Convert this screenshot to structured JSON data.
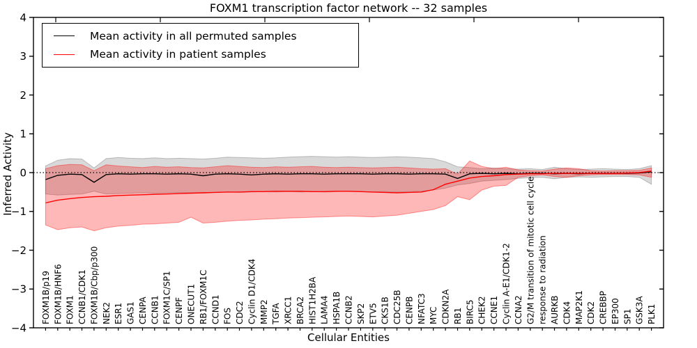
{
  "chart_data": {
    "type": "line",
    "title": "FOXM1 transcription factor network -- 32 samples",
    "xlabel": "Cellular Entities",
    "ylabel": "Inferred Activity",
    "ylim": [
      -4,
      4
    ],
    "yticks": [
      4,
      3,
      2,
      1,
      0,
      -1,
      -2,
      -3,
      -4
    ],
    "ytick_labels": [
      "4",
      "3",
      "2",
      "1",
      "0",
      "−1",
      "−2",
      "−3",
      "−4"
    ],
    "grid": false,
    "legend_position": "upper left",
    "zero_line": "dotted black at y=0",
    "categories": [
      "FOXM1B/p19",
      "FOXM1B/HNF6",
      "FOXM1",
      "CCNB1/CDK1",
      "FOXM1B/Cbp/p300",
      "NEK2",
      "ESR1",
      "GAS1",
      "CENPA",
      "CCNB1",
      "FOXM1C/SP1",
      "CENPF",
      "ONECUT1",
      "RB1/FOXM1C",
      "CCND1",
      "FOS",
      "CDC2",
      "Cyclin D1/CDK4",
      "MMP2",
      "TGFA",
      "XRCC1",
      "BRCA2",
      "HIST1H2BA",
      "LAMA4",
      "HSPA1B",
      "CCNB2",
      "SKP2",
      "ETV5",
      "CKS1B",
      "CDC25B",
      "CENPB",
      "NFATC3",
      "MYC",
      "CDKN2A",
      "RB1",
      "BIRC5",
      "CHEK2",
      "CCNE1",
      "Cyclin A-E1/CDK1-2",
      "CCNA2",
      "G2/M transition of mitotic cell cycle",
      "response to radiation",
      "AURKB",
      "CDK4",
      "MAP2K1",
      "CDK2",
      "CREBBP",
      "EP300",
      "SP1",
      "GSK3A",
      "PLK1"
    ],
    "series": [
      {
        "name": "Mean activity in all permuted samples",
        "color": "#000000",
        "values": [
          -0.18,
          -0.07,
          -0.04,
          -0.05,
          -0.25,
          -0.05,
          -0.03,
          -0.04,
          -0.03,
          -0.03,
          -0.04,
          -0.03,
          -0.04,
          -0.08,
          -0.04,
          -0.03,
          -0.04,
          -0.06,
          -0.04,
          -0.03,
          -0.04,
          -0.03,
          -0.03,
          -0.04,
          -0.03,
          -0.03,
          -0.03,
          -0.04,
          -0.03,
          -0.03,
          -0.04,
          -0.03,
          -0.03,
          -0.04,
          -0.15,
          -0.03,
          -0.02,
          -0.03,
          -0.02,
          -0.03,
          -0.02,
          -0.02,
          -0.03,
          -0.02,
          -0.03,
          -0.02,
          -0.02,
          -0.02,
          -0.02,
          -0.01,
          0.02
        ],
        "band": {
          "fill": "rgba(0,0,0,0.15)",
          "edge": "rgba(0,0,0,0.22)",
          "upper": [
            0.17,
            0.32,
            0.36,
            0.35,
            0.12,
            0.36,
            0.39,
            0.37,
            0.36,
            0.38,
            0.36,
            0.37,
            0.36,
            0.35,
            0.37,
            0.4,
            0.39,
            0.38,
            0.37,
            0.38,
            0.4,
            0.41,
            0.42,
            0.41,
            0.4,
            0.41,
            0.4,
            0.39,
            0.4,
            0.41,
            0.4,
            0.38,
            0.36,
            0.28,
            0.15,
            0.13,
            0.1,
            0.12,
            0.1,
            0.09,
            0.1,
            0.08,
            0.14,
            0.1,
            0.08,
            0.09,
            0.1,
            0.09,
            0.08,
            0.1,
            0.18
          ],
          "lower": [
            -0.55,
            -0.58,
            -0.56,
            -0.55,
            -0.48,
            -0.55,
            -0.54,
            -0.53,
            -0.52,
            -0.53,
            -0.52,
            -0.51,
            -0.52,
            -0.53,
            -0.51,
            -0.5,
            -0.51,
            -0.5,
            -0.49,
            -0.5,
            -0.49,
            -0.5,
            -0.49,
            -0.5,
            -0.49,
            -0.48,
            -0.49,
            -0.5,
            -0.49,
            -0.5,
            -0.49,
            -0.48,
            -0.45,
            -0.4,
            -0.32,
            -0.28,
            -0.22,
            -0.2,
            -0.18,
            -0.15,
            -0.13,
            -0.12,
            -0.16,
            -0.12,
            -0.11,
            -0.12,
            -0.11,
            -0.1,
            -0.1,
            -0.12,
            -0.3
          ]
        }
      },
      {
        "name": "Mean activity in patient samples",
        "color": "#ff0000",
        "values": [
          -0.78,
          -0.71,
          -0.67,
          -0.64,
          -0.62,
          -0.61,
          -0.59,
          -0.58,
          -0.57,
          -0.56,
          -0.55,
          -0.54,
          -0.53,
          -0.52,
          -0.51,
          -0.5,
          -0.5,
          -0.49,
          -0.49,
          -0.48,
          -0.48,
          -0.48,
          -0.49,
          -0.49,
          -0.48,
          -0.48,
          -0.49,
          -0.5,
          -0.51,
          -0.52,
          -0.51,
          -0.5,
          -0.44,
          -0.3,
          -0.22,
          -0.14,
          -0.1,
          -0.08,
          -0.05,
          -0.04,
          -0.03,
          -0.03,
          -0.02,
          -0.02,
          -0.02,
          -0.02,
          -0.02,
          -0.02,
          -0.01,
          0.0,
          0.04
        ],
        "band": {
          "fill": "rgba(255,0,0,0.28)",
          "edge": "rgba(255,0,0,0.40)",
          "upper": [
            0.1,
            0.18,
            0.21,
            0.2,
            0.05,
            0.2,
            0.17,
            0.15,
            0.13,
            0.16,
            0.14,
            0.15,
            0.13,
            0.12,
            0.15,
            0.18,
            0.16,
            0.14,
            0.13,
            0.15,
            0.14,
            0.15,
            0.16,
            0.14,
            0.13,
            0.14,
            0.13,
            0.12,
            0.13,
            0.14,
            0.12,
            0.1,
            0.09,
            0.1,
            -0.04,
            0.3,
            0.16,
            0.1,
            0.14,
            0.07,
            0.05,
            0.04,
            0.09,
            0.12,
            0.1,
            0.05,
            0.04,
            0.05,
            0.05,
            0.06,
            0.12
          ],
          "lower": [
            -1.35,
            -1.47,
            -1.42,
            -1.4,
            -1.5,
            -1.42,
            -1.38,
            -1.36,
            -1.33,
            -1.32,
            -1.3,
            -1.28,
            -1.15,
            -1.3,
            -1.28,
            -1.25,
            -1.23,
            -1.22,
            -1.2,
            -1.19,
            -1.17,
            -1.16,
            -1.15,
            -1.14,
            -1.13,
            -1.12,
            -1.13,
            -1.14,
            -1.12,
            -1.1,
            -1.05,
            -1.0,
            -0.95,
            -0.85,
            -0.62,
            -0.7,
            -0.45,
            -0.35,
            -0.33,
            -0.12,
            -0.08,
            -0.06,
            -0.1,
            -0.12,
            -0.08,
            -0.06,
            -0.05,
            -0.05,
            -0.05,
            -0.06,
            -0.12
          ]
        }
      }
    ]
  }
}
